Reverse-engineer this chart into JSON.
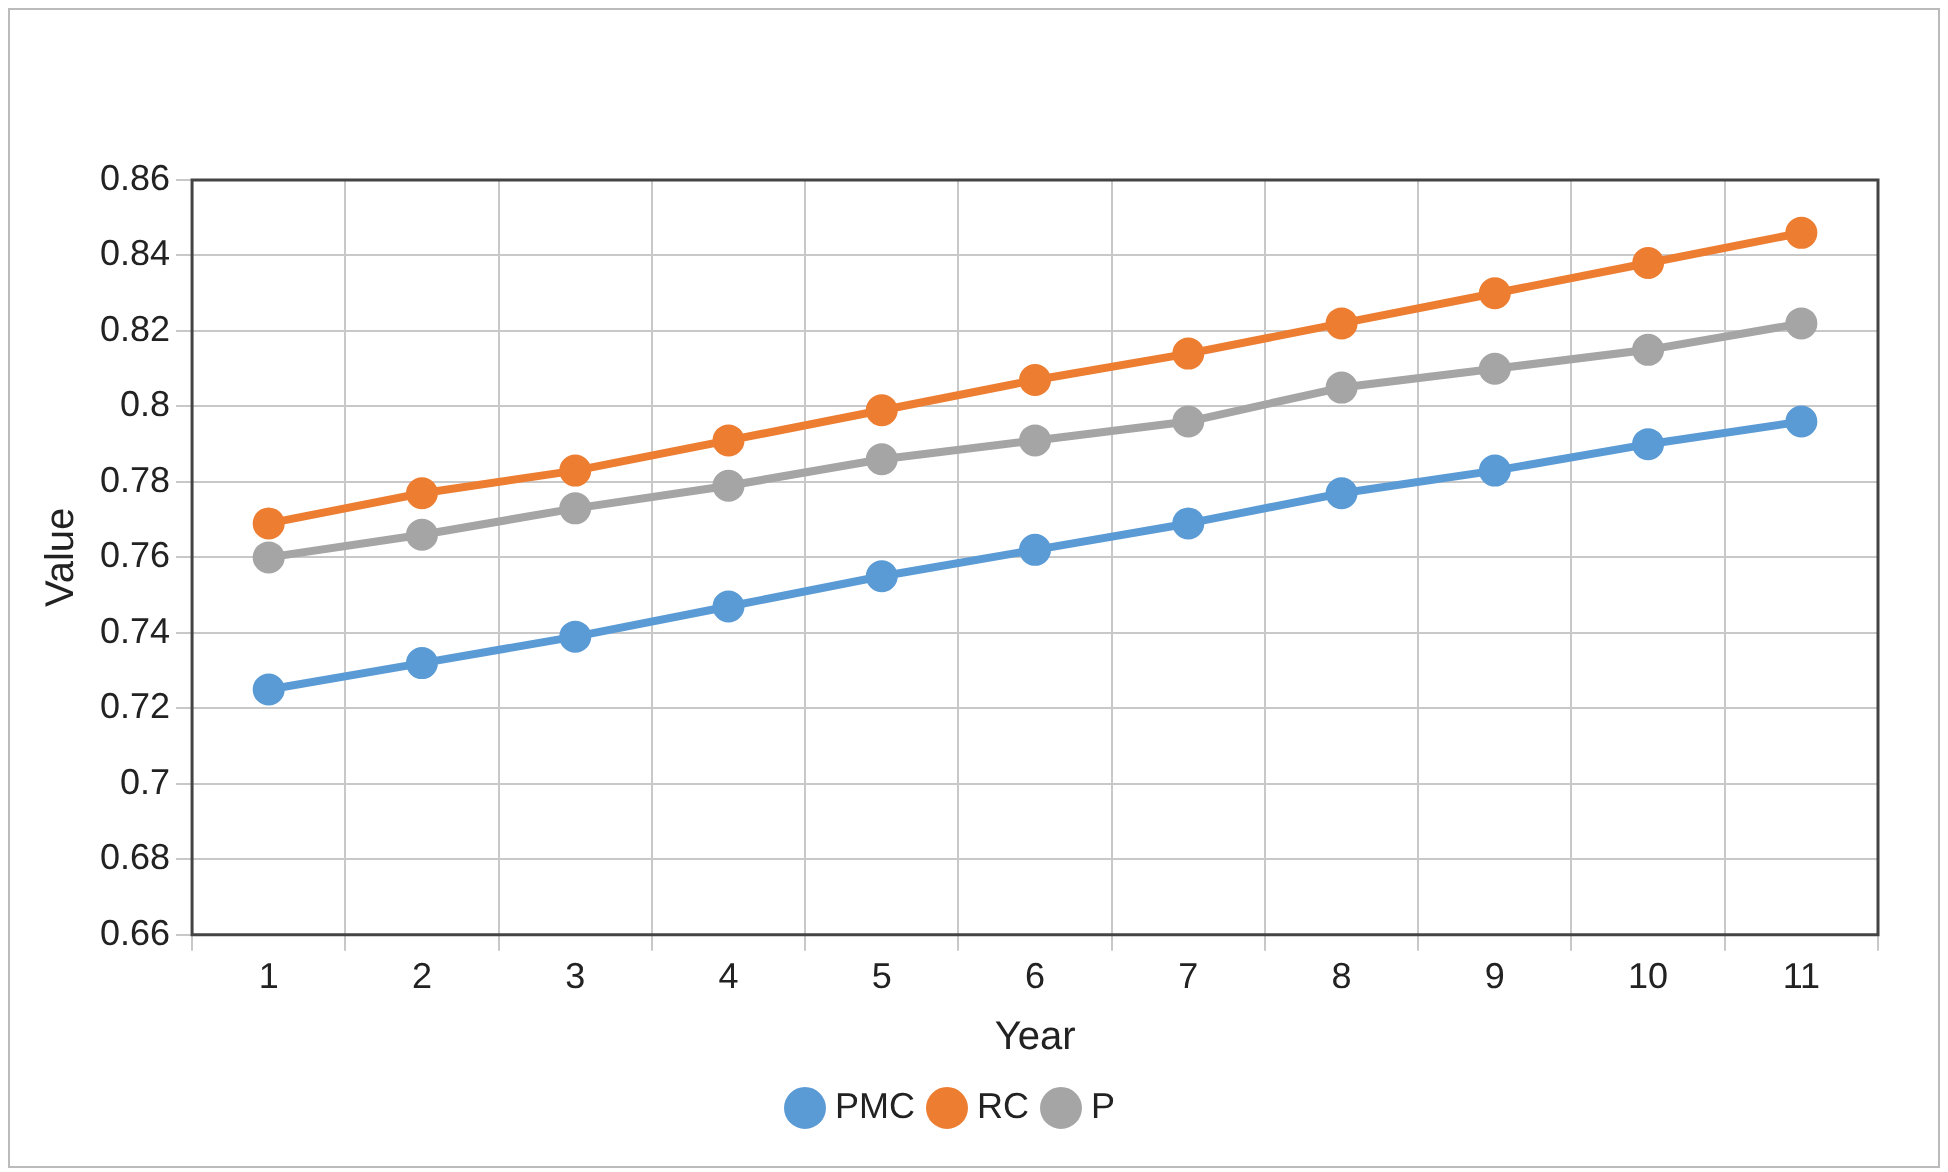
{
  "chart_data": {
    "type": "line",
    "xlabel": "Year",
    "ylabel": "Value",
    "categories": [
      "1",
      "2",
      "3",
      "4",
      "5",
      "6",
      "7",
      "8",
      "9",
      "10",
      "11"
    ],
    "series": [
      {
        "name": "PMC",
        "color": "#5b9bd5",
        "values": [
          0.725,
          0.732,
          0.739,
          0.747,
          0.755,
          0.762,
          0.769,
          0.777,
          0.783,
          0.79,
          0.796
        ]
      },
      {
        "name": "RC",
        "color": "#ed7d31",
        "values": [
          0.769,
          0.777,
          0.783,
          0.791,
          0.799,
          0.807,
          0.814,
          0.822,
          0.83,
          0.838,
          0.846
        ]
      },
      {
        "name": "P",
        "color": "#a5a5a5",
        "values": [
          0.76,
          0.766,
          0.773,
          0.779,
          0.786,
          0.791,
          0.796,
          0.805,
          0.81,
          0.815,
          0.822
        ]
      }
    ],
    "ylim": [
      0.66,
      0.86
    ],
    "yticks": [
      0.66,
      0.68,
      0.7,
      0.72,
      0.74,
      0.76,
      0.78,
      0.8,
      0.82,
      0.84,
      0.86
    ],
    "grid": true,
    "legend": "bottom",
    "marker": "circle",
    "line_style": "solid"
  }
}
